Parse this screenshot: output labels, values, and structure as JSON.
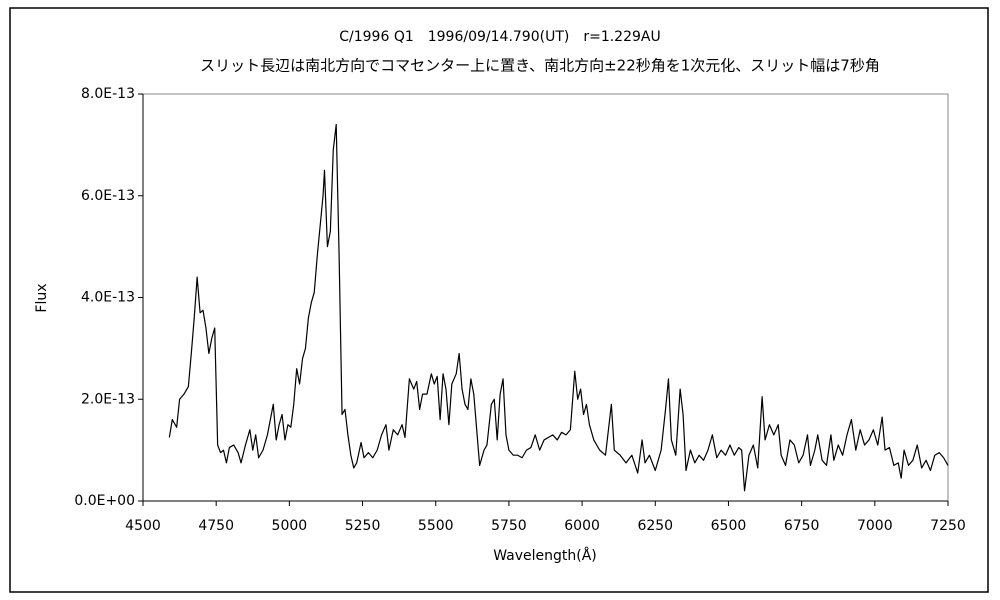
{
  "chart_data": {
    "type": "line",
    "title": "C/1996 Q1　1996/09/14.790(UT)　r=1.229AU",
    "subtitle": "スリット長辺は南北方向でコマセンター上に置き、南北方向±22秒角を1次元化、スリット幅は7秒角",
    "xlabel": "Wavelength(Å)",
    "ylabel": "Flux",
    "xlim": [
      4500,
      7250
    ],
    "xticks": [
      4500,
      4750,
      5000,
      5250,
      5500,
      5750,
      6000,
      6250,
      6500,
      6750,
      7000,
      7250
    ],
    "ylim": [
      0,
      8e-13
    ],
    "yticks": [
      {
        "value": 0,
        "label": "0.0E+00"
      },
      {
        "value": 2e-13,
        "label": "2.0E-13"
      },
      {
        "value": 4e-13,
        "label": "4.0E-13"
      },
      {
        "value": 6e-13,
        "label": "6.0E-13"
      },
      {
        "value": 8e-13,
        "label": "8.0E-13"
      }
    ],
    "grid": false,
    "x": [
      4590,
      4600,
      4615,
      4625,
      4640,
      4655,
      4665,
      4675,
      4685,
      4695,
      4705,
      4715,
      4725,
      4735,
      4745,
      4755,
      4765,
      4775,
      4785,
      4795,
      4810,
      4825,
      4835,
      4850,
      4865,
      4875,
      4885,
      4895,
      4910,
      4925,
      4935,
      4945,
      4955,
      4965,
      4975,
      4985,
      4995,
      5005,
      5015,
      5025,
      5035,
      5045,
      5055,
      5065,
      5075,
      5085,
      5095,
      5105,
      5115,
      5120,
      5130,
      5140,
      5150,
      5160,
      5170,
      5180,
      5190,
      5200,
      5210,
      5220,
      5230,
      5245,
      5255,
      5270,
      5285,
      5300,
      5315,
      5330,
      5340,
      5355,
      5370,
      5385,
      5395,
      5410,
      5425,
      5435,
      5445,
      5455,
      5470,
      5485,
      5495,
      5505,
      5515,
      5525,
      5535,
      5545,
      5555,
      5570,
      5580,
      5590,
      5600,
      5610,
      5620,
      5630,
      5640,
      5650,
      5665,
      5675,
      5690,
      5700,
      5710,
      5720,
      5730,
      5740,
      5750,
      5765,
      5780,
      5795,
      5810,
      5825,
      5840,
      5855,
      5870,
      5885,
      5900,
      5915,
      5930,
      5945,
      5960,
      5975,
      5985,
      5995,
      6005,
      6015,
      6025,
      6040,
      6060,
      6080,
      6100,
      6110,
      6130,
      6150,
      6170,
      6190,
      6205,
      6215,
      6230,
      6250,
      6270,
      6285,
      6295,
      6305,
      6320,
      6335,
      6345,
      6355,
      6370,
      6385,
      6400,
      6415,
      6430,
      6445,
      6460,
      6475,
      6490,
      6505,
      6520,
      6535,
      6545,
      6555,
      6570,
      6585,
      6600,
      6615,
      6625,
      6640,
      6655,
      6670,
      6680,
      6695,
      6710,
      6725,
      6740,
      6755,
      6770,
      6780,
      6795,
      6805,
      6820,
      6835,
      6850,
      6860,
      6875,
      6890,
      6905,
      6920,
      6935,
      6950,
      6965,
      6980,
      6995,
      7010,
      7025,
      7035,
      7050,
      7065,
      7080,
      7090,
      7100,
      7115,
      7130,
      7145,
      7160,
      7175,
      7190,
      7205,
      7220,
      7235,
      7250
    ],
    "series": [
      {
        "color": "#000000",
        "values": [
          1.25e-13,
          1.6e-13,
          1.45e-13,
          2e-13,
          2.1e-13,
          2.25e-13,
          2.9e-13,
          3.6e-13,
          4.4e-13,
          3.7e-13,
          3.75e-13,
          3.4e-13,
          2.9e-13,
          3.2e-13,
          3.4e-13,
          1.1e-13,
          9.5e-14,
          1e-13,
          7.5e-14,
          1.05e-13,
          1.1e-13,
          9.5e-14,
          7.5e-14,
          1.1e-13,
          1.4e-13,
          1e-13,
          1.3e-13,
          8.5e-14,
          1e-13,
          1.3e-13,
          1.6e-13,
          1.9e-13,
          1.2e-13,
          1.5e-13,
          1.7e-13,
          1.2e-13,
          1.5e-13,
          1.45e-13,
          1.9e-13,
          2.6e-13,
          2.3e-13,
          2.8e-13,
          3e-13,
          3.6e-13,
          3.9e-13,
          4.1e-13,
          4.8e-13,
          5.4e-13,
          6e-13,
          6.5e-13,
          5e-13,
          5.3e-13,
          6.9e-13,
          7.4e-13,
          4.8e-13,
          1.7e-13,
          1.8e-13,
          1.3e-13,
          9e-14,
          6.5e-14,
          7.5e-14,
          1.15e-13,
          8.5e-14,
          9.5e-14,
          8.5e-14,
          1e-13,
          1.3e-13,
          1.5e-13,
          1e-13,
          1.4e-13,
          1.3e-13,
          1.5e-13,
          1.25e-13,
          2.4e-13,
          2.2e-13,
          2.35e-13,
          1.8e-13,
          2.1e-13,
          2.1e-13,
          2.5e-13,
          2.3e-13,
          2.45e-13,
          1.6e-13,
          2.5e-13,
          2.2e-13,
          1.5e-13,
          2.3e-13,
          2.5e-13,
          2.9e-13,
          2.2e-13,
          1.9e-13,
          1.8e-13,
          2.4e-13,
          2.1e-13,
          1.4e-13,
          7e-14,
          1e-13,
          1.1e-13,
          1.9e-13,
          2e-13,
          1.2e-13,
          2.1e-13,
          2.4e-13,
          1.3e-13,
          1e-13,
          9e-14,
          9e-14,
          8.5e-14,
          1e-13,
          1.05e-13,
          1.3e-13,
          1e-13,
          1.2e-13,
          1.25e-13,
          1.3e-13,
          1.2e-13,
          1.35e-13,
          1.3e-13,
          1.4e-13,
          2.55e-13,
          2e-13,
          2.2e-13,
          1.7e-13,
          1.9e-13,
          1.5e-13,
          1.2e-13,
          1e-13,
          9e-14,
          1.9e-13,
          1e-13,
          9e-14,
          7.5e-14,
          9e-14,
          5.5e-14,
          1.2e-13,
          7.5e-14,
          9e-14,
          6e-14,
          1e-13,
          1.8e-13,
          2.4e-13,
          1.2e-13,
          9e-14,
          2.2e-13,
          1.7e-13,
          6e-14,
          1e-13,
          7.5e-14,
          9e-14,
          8e-14,
          1e-13,
          1.3e-13,
          8.5e-14,
          1e-13,
          9e-14,
          1.1e-13,
          9e-14,
          1.05e-13,
          1e-13,
          2e-14,
          9e-14,
          1.1e-13,
          6.5e-14,
          2.05e-13,
          1.2e-13,
          1.5e-13,
          1.3e-13,
          1.5e-13,
          9e-14,
          7e-14,
          1.2e-13,
          1.1e-13,
          7.5e-14,
          9e-14,
          1.3e-13,
          7e-14,
          1e-13,
          1.3e-13,
          8e-14,
          7e-14,
          1.3e-13,
          8e-14,
          1.1e-13,
          9e-14,
          1.3e-13,
          1.6e-13,
          1e-13,
          1.4e-13,
          1.1e-13,
          1.2e-13,
          1.4e-13,
          1.1e-13,
          1.65e-13,
          1e-13,
          1.05e-13,
          7e-14,
          7.5e-14,
          4.5e-14,
          1e-13,
          7e-14,
          8e-14,
          1.1e-13,
          6.5e-14,
          8e-14,
          6e-14,
          9e-14,
          9.5e-14,
          8.5e-14,
          7e-14
        ]
      }
    ]
  }
}
